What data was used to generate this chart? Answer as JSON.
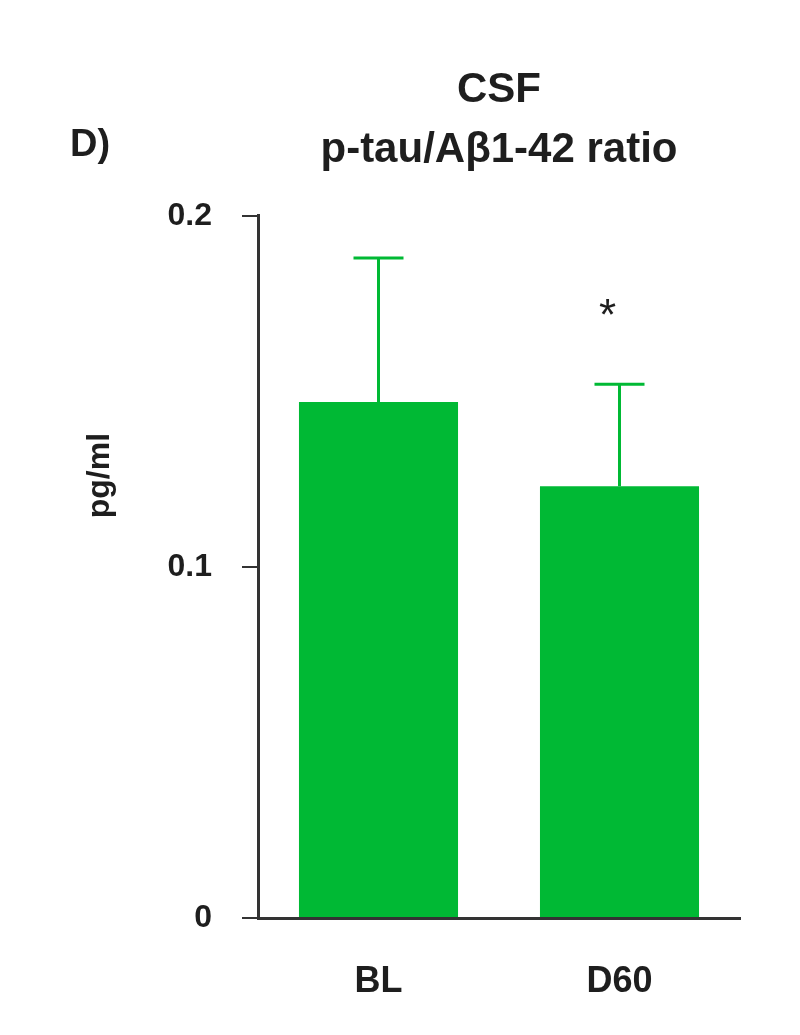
{
  "chart_data": {
    "type": "bar",
    "title": "CSF",
    "subtitle": "p-tau/Aβ1-42 ratio",
    "ylabel": "pg/ml",
    "categories": [
      "BL",
      "D60"
    ],
    "values": [
      0.147,
      0.123
    ],
    "errors": [
      [
        0.147,
        0.188
      ],
      [
        0.123,
        0.152
      ]
    ],
    "color": "#00b934",
    "ylim": [
      0,
      0.2
    ],
    "yticks": [
      0,
      0.1,
      0.2
    ],
    "annotations": [
      "D)",
      {
        "text": "*",
        "x": "D60",
        "y": 0.152
      }
    ]
  }
}
